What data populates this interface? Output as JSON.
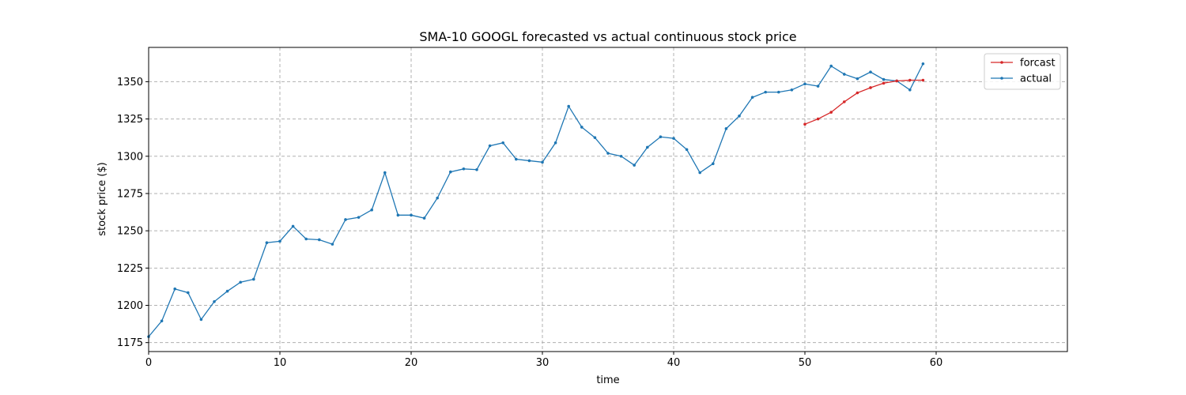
{
  "chart_data": {
    "type": "line",
    "title": "SMA-10 GOOGL forecasted vs actual continuous stock price",
    "xlabel": "time",
    "ylabel": "stock price ($)",
    "xlim": [
      0,
      70
    ],
    "ylim": [
      1169,
      1373
    ],
    "xticks": [
      0,
      10,
      20,
      30,
      40,
      50,
      60
    ],
    "yticks": [
      1175,
      1200,
      1225,
      1250,
      1275,
      1300,
      1325,
      1350
    ],
    "grid": true,
    "legend_position": "top-right",
    "series": [
      {
        "name": "forcast",
        "color": "#d62728",
        "x": [
          50,
          51,
          52,
          53,
          54,
          55,
          56,
          57,
          58,
          59
        ],
        "y": [
          1321.5,
          1325,
          1329.5,
          1336.5,
          1342.5,
          1346,
          1349,
          1350.5,
          1351,
          1351
        ]
      },
      {
        "name": "actual",
        "color": "#1f77b4",
        "x": [
          0,
          1,
          2,
          3,
          4,
          5,
          6,
          7,
          8,
          9,
          10,
          11,
          12,
          13,
          14,
          15,
          16,
          17,
          18,
          19,
          20,
          21,
          22,
          23,
          24,
          25,
          26,
          27,
          28,
          29,
          30,
          31,
          32,
          33,
          34,
          35,
          36,
          37,
          38,
          39,
          40,
          41,
          42,
          43,
          44,
          45,
          46,
          47,
          48,
          49,
          50,
          51,
          52,
          53,
          54,
          55,
          56,
          57,
          58,
          59
        ],
        "y": [
          1179,
          1189.5,
          1211,
          1208.5,
          1190.5,
          1202.5,
          1209.5,
          1215.5,
          1217.5,
          1242,
          1243,
          1253,
          1244.5,
          1244,
          1241,
          1257.5,
          1259,
          1264,
          1289,
          1260.5,
          1260.5,
          1258.5,
          1272,
          1289.5,
          1291.5,
          1291,
          1307,
          1309,
          1298,
          1297,
          1296,
          1309,
          1333.5,
          1319.5,
          1312.5,
          1302,
          1300,
          1294,
          1306,
          1313,
          1312,
          1304.5,
          1289,
          1295,
          1318.5,
          1327,
          1339.5,
          1343,
          1343,
          1344.5,
          1348.5,
          1347,
          1360.5,
          1355,
          1352,
          1356.5,
          1351.5,
          1350.5,
          1344.5,
          1362
        ]
      }
    ]
  }
}
